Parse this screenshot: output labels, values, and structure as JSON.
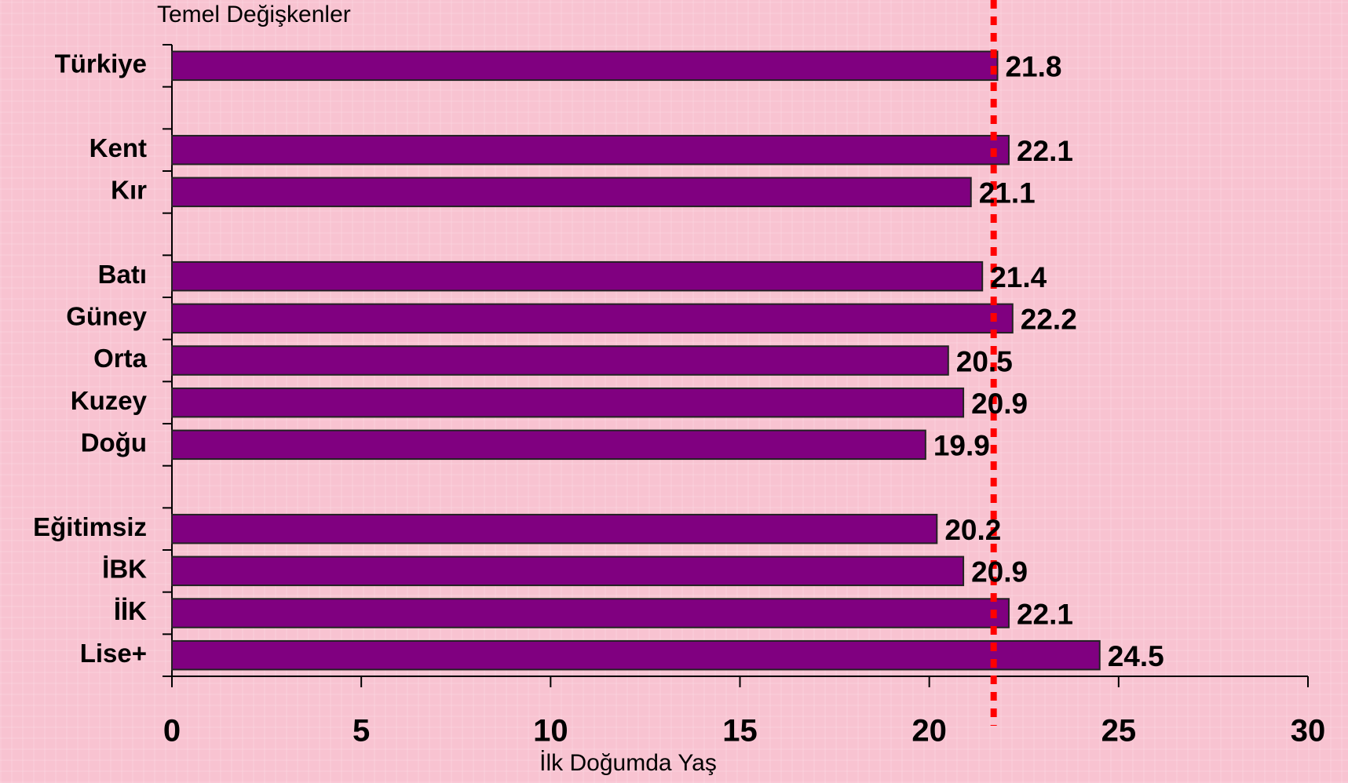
{
  "chart_data": {
    "type": "bar",
    "orientation": "horizontal",
    "title": "Temel Değişkenler",
    "x_label": "İlk Doğumda Yaş",
    "categories": [
      "Türkiye",
      null,
      "Kent",
      "Kır",
      null,
      "Batı",
      "Güney",
      "Orta",
      "Kuzey",
      "Doğu",
      null,
      "Eğitimsiz",
      "İBK",
      "İİK",
      "Lise+"
    ],
    "values": [
      21.8,
      null,
      22.1,
      21.1,
      null,
      21.4,
      22.2,
      20.5,
      20.9,
      19.9,
      null,
      20.2,
      20.9,
      22.1,
      24.5
    ],
    "color": "#800080",
    "xlim": [
      0,
      30
    ],
    "xticks": [
      0,
      5,
      10,
      15,
      20,
      25,
      30
    ],
    "reference_line": {
      "value": 21.7,
      "color": "#ff0000"
    }
  }
}
